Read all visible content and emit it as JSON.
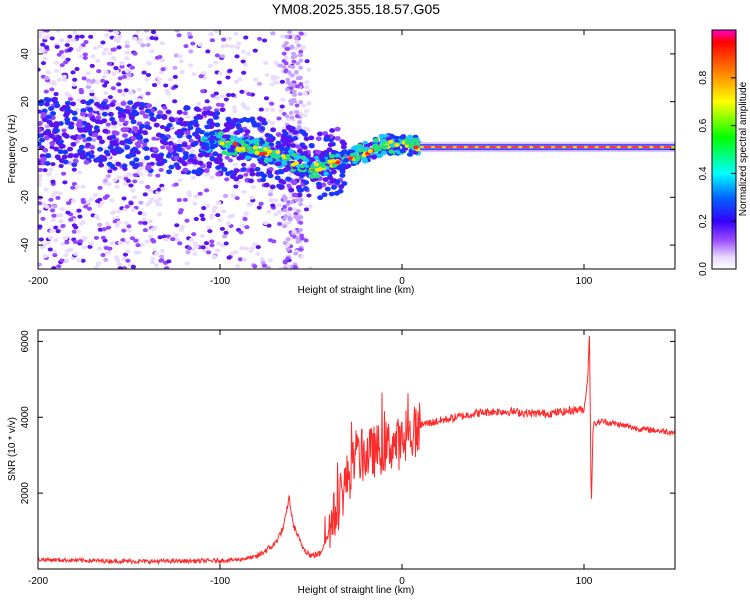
{
  "title": "YM08.2025.355.18.57.G05",
  "chart_data": [
    {
      "type": "heatmap",
      "title": "YM08.2025.355.18.57.G05",
      "xlabel": "Height of straight line (km)",
      "ylabel": "Frequency (Hz)",
      "xlim": [
        -200,
        150
      ],
      "ylim": [
        -50,
        50
      ],
      "xticks": [
        -200,
        -100,
        0,
        100
      ],
      "yticks": [
        -40,
        -20,
        0,
        20,
        40
      ],
      "colorbar": {
        "label": "Normalized spectral amplitude",
        "range": [
          0,
          1
        ],
        "ticks": [
          "0.0",
          "0.2",
          "0.4",
          "0.6",
          "0.8"
        ]
      },
      "ridge": {
        "x": [
          -200,
          -170,
          -140,
          -120,
          -100,
          -90,
          -80,
          -70,
          -60,
          -50,
          -45,
          -40,
          -30,
          -20,
          -10,
          0,
          10,
          50,
          100,
          150
        ],
        "y": [
          8,
          7,
          5,
          4,
          3,
          1,
          0,
          -2,
          -5,
          -8,
          -7,
          -6,
          -4,
          -1,
          2,
          2,
          1,
          1,
          1,
          2
        ]
      }
    },
    {
      "type": "line",
      "xlabel": "Height of straight line (km)",
      "ylabel": "SNR (10 * v/v)",
      "xlim": [
        -200,
        150
      ],
      "ylim": [
        0,
        6300
      ],
      "xticks": [
        -200,
        -100,
        0,
        100
      ],
      "yticks": [
        2000,
        4000,
        6000
      ],
      "color": "#ff2a2a",
      "series": [
        {
          "name": "SNR",
          "x": [
            -200,
            -180,
            -160,
            -140,
            -120,
            -100,
            -90,
            -80,
            -70,
            -65,
            -62,
            -60,
            -55,
            -50,
            -45,
            -40,
            -35,
            -30,
            -25,
            -20,
            -15,
            -10,
            -5,
            0,
            5,
            10,
            20,
            30,
            40,
            50,
            60,
            70,
            80,
            90,
            95,
            100,
            102,
            103,
            104,
            105,
            110,
            120,
            130,
            140,
            150
          ],
          "y": [
            250,
            230,
            210,
            200,
            210,
            220,
            250,
            320,
            650,
            1100,
            1900,
            1200,
            600,
            350,
            400,
            1000,
            1700,
            2400,
            2900,
            3000,
            3100,
            3200,
            3300,
            3300,
            3500,
            3800,
            3900,
            4000,
            4100,
            4150,
            4150,
            4100,
            4100,
            4150,
            4200,
            4200,
            5000,
            6200,
            1600,
            3800,
            3900,
            3800,
            3700,
            3650,
            3600
          ]
        }
      ]
    }
  ]
}
